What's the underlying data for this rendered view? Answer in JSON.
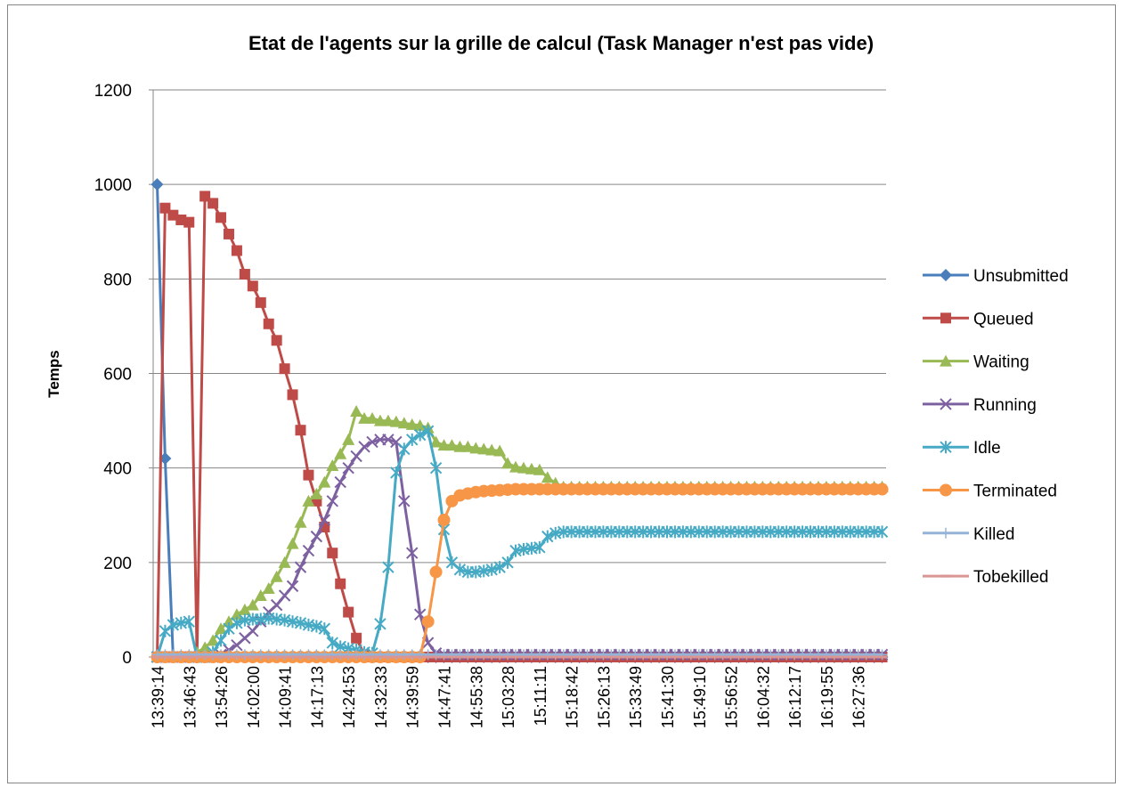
{
  "chart_data": {
    "type": "line",
    "title": "Etat de l'agents sur la grille de calcul (Task Manager n'est pas vide)",
    "y_label": "Temps",
    "categories": [
      "13:39:14",
      null,
      null,
      null,
      "13:46:43",
      null,
      null,
      null,
      "13:54:26",
      null,
      null,
      null,
      "14:02:00",
      null,
      null,
      null,
      "14:09:41",
      null,
      null,
      null,
      "14:17:13",
      null,
      null,
      null,
      "14:24:53",
      null,
      null,
      null,
      "14:32:33",
      null,
      null,
      null,
      "14:39:59",
      null,
      null,
      null,
      "14:47:41",
      null,
      null,
      null,
      "14:55:38",
      null,
      null,
      null,
      "15:03:28",
      null,
      null,
      null,
      "15:11:11",
      null,
      null,
      null,
      "15:18:42",
      null,
      null,
      null,
      "15:26:13",
      null,
      null,
      null,
      "15:33:49",
      null,
      null,
      null,
      "15:41:30",
      null,
      null,
      null,
      "15:49:10",
      null,
      null,
      null,
      "15:56:52",
      null,
      null,
      null,
      "16:04:32",
      null,
      null,
      null,
      "16:12:17",
      null,
      null,
      null,
      "16:19:55",
      null,
      null,
      null,
      "16:27:36",
      null,
      null,
      null
    ],
    "ylim": [
      0,
      1200
    ],
    "yticks": [
      0,
      200,
      400,
      600,
      800,
      1000,
      1200
    ],
    "grid": true,
    "legend": "right",
    "series": [
      {
        "name": "Unsubmitted",
        "color": "#4a7ebb",
        "marker": "diamond",
        "values": [
          1000,
          420,
          0,
          0,
          0,
          0,
          0,
          0,
          0,
          0,
          0,
          0,
          0,
          0,
          0,
          0,
          0,
          0,
          0,
          0,
          0,
          0,
          0,
          0,
          0,
          0,
          0,
          0,
          0,
          0,
          0,
          0,
          0,
          0,
          0,
          0,
          0,
          0,
          0,
          0,
          0,
          0,
          0,
          0,
          0,
          0,
          0,
          0,
          0,
          0,
          0,
          0,
          0,
          0,
          0,
          0,
          0,
          0,
          0,
          0,
          0,
          0,
          0,
          0,
          0,
          0,
          0,
          0,
          0,
          0,
          0,
          0,
          0,
          0,
          0,
          0,
          0,
          0,
          0,
          0,
          0,
          0,
          0,
          0,
          0,
          0,
          0,
          0,
          0,
          0,
          0,
          0
        ]
      },
      {
        "name": "Queued",
        "color": "#be4b48",
        "marker": "square",
        "values": [
          0,
          950,
          935,
          925,
          920,
          0,
          975,
          960,
          930,
          895,
          860,
          810,
          785,
          750,
          705,
          670,
          610,
          555,
          480,
          385,
          330,
          275,
          220,
          155,
          95,
          40,
          5,
          0,
          0,
          0,
          0,
          0,
          0,
          0,
          0,
          0,
          0,
          0,
          0,
          0,
          0,
          0,
          0,
          0,
          0,
          0,
          0,
          0,
          0,
          0,
          0,
          0,
          0,
          0,
          0,
          0,
          0,
          0,
          0,
          0,
          0,
          0,
          0,
          0,
          0,
          0,
          0,
          0,
          0,
          0,
          0,
          0,
          0,
          0,
          0,
          0,
          0,
          0,
          0,
          0,
          0,
          0,
          0,
          0,
          0,
          0,
          0,
          0,
          0,
          0,
          0,
          0
        ]
      },
      {
        "name": "Waiting",
        "color": "#98b954",
        "marker": "triangle",
        "values": [
          0,
          0,
          0,
          0,
          0,
          10,
          20,
          35,
          60,
          75,
          90,
          100,
          110,
          130,
          145,
          170,
          200,
          240,
          285,
          330,
          345,
          370,
          405,
          430,
          460,
          520,
          505,
          505,
          500,
          500,
          498,
          495,
          492,
          490,
          485,
          455,
          448,
          448,
          445,
          445,
          442,
          440,
          438,
          436,
          410,
          402,
          400,
          398,
          396,
          380,
          368,
          360,
          360,
          360,
          360,
          360,
          360,
          360,
          360,
          360,
          360,
          360,
          360,
          360,
          360,
          360,
          360,
          360,
          360,
          360,
          360,
          360,
          360,
          360,
          360,
          360,
          360,
          360,
          360,
          360,
          360,
          360,
          360,
          360,
          360,
          360,
          360,
          360,
          360,
          360,
          360,
          360
        ]
      },
      {
        "name": "Running",
        "color": "#7d60a0",
        "marker": "x",
        "values": [
          0,
          0,
          0,
          0,
          0,
          0,
          0,
          0,
          5,
          15,
          25,
          40,
          55,
          75,
          95,
          110,
          130,
          150,
          190,
          225,
          255,
          290,
          330,
          370,
          400,
          425,
          445,
          455,
          460,
          460,
          455,
          330,
          220,
          90,
          30,
          8,
          5,
          5,
          5,
          5,
          5,
          5,
          5,
          5,
          5,
          5,
          5,
          5,
          5,
          5,
          5,
          5,
          5,
          5,
          5,
          5,
          5,
          5,
          5,
          5,
          5,
          5,
          5,
          5,
          5,
          5,
          5,
          5,
          5,
          5,
          5,
          5,
          5,
          5,
          5,
          5,
          5,
          5,
          5,
          5,
          5,
          5,
          5,
          5,
          5,
          5,
          5,
          5,
          5,
          5,
          5,
          5
        ]
      },
      {
        "name": "Idle",
        "color": "#46aac5",
        "marker": "star",
        "values": [
          0,
          55,
          68,
          72,
          75,
          0,
          0,
          10,
          35,
          60,
          72,
          78,
          80,
          80,
          82,
          80,
          78,
          75,
          72,
          68,
          65,
          60,
          30,
          22,
          18,
          15,
          10,
          8,
          70,
          190,
          390,
          440,
          460,
          470,
          478,
          400,
          270,
          200,
          185,
          180,
          180,
          182,
          185,
          190,
          200,
          225,
          228,
          230,
          232,
          255,
          262,
          265,
          265,
          265,
          265,
          265,
          265,
          265,
          265,
          265,
          265,
          265,
          265,
          265,
          265,
          265,
          265,
          265,
          265,
          265,
          265,
          265,
          265,
          265,
          265,
          265,
          265,
          265,
          265,
          265,
          265,
          265,
          265,
          265,
          265,
          265,
          265,
          265,
          265,
          265,
          265,
          265
        ]
      },
      {
        "name": "Terminated",
        "color": "#f79646",
        "marker": "circle",
        "values": [
          0,
          0,
          0,
          0,
          0,
          0,
          0,
          0,
          0,
          0,
          0,
          0,
          0,
          0,
          0,
          0,
          0,
          0,
          0,
          0,
          0,
          0,
          0,
          0,
          0,
          0,
          0,
          0,
          0,
          0,
          0,
          0,
          0,
          0,
          75,
          180,
          290,
          330,
          342,
          346,
          349,
          351,
          352,
          353,
          354,
          355,
          355,
          355,
          355,
          355,
          355,
          355,
          355,
          355,
          355,
          355,
          355,
          355,
          355,
          355,
          355,
          355,
          355,
          355,
          355,
          355,
          355,
          355,
          355,
          355,
          355,
          355,
          355,
          355,
          355,
          355,
          355,
          355,
          355,
          355,
          355,
          355,
          355,
          355,
          355,
          355,
          355,
          355,
          355,
          355,
          355,
          355
        ]
      },
      {
        "name": "Killed",
        "color": "#95b3d7",
        "marker": "plus",
        "values": [
          5,
          5,
          5,
          5,
          5,
          5,
          5,
          5,
          5,
          5,
          5,
          5,
          5,
          5,
          5,
          5,
          5,
          5,
          5,
          5,
          5,
          5,
          5,
          5,
          5,
          5,
          5,
          5,
          5,
          5,
          5,
          5,
          5,
          5,
          5,
          5,
          5,
          5,
          5,
          5,
          5,
          5,
          5,
          5,
          5,
          5,
          5,
          5,
          5,
          5,
          5,
          5,
          5,
          5,
          5,
          5,
          5,
          5,
          5,
          5,
          5,
          5,
          5,
          5,
          5,
          5,
          5,
          5,
          5,
          5,
          5,
          5,
          5,
          5,
          5,
          5,
          5,
          5,
          5,
          5,
          5,
          5,
          5,
          5,
          5,
          5,
          5,
          5,
          5,
          5,
          5,
          5
        ]
      },
      {
        "name": "Tobekilled",
        "color": "#d99694",
        "marker": "dash",
        "values": [
          0,
          0,
          0,
          0,
          0,
          0,
          0,
          0,
          0,
          0,
          0,
          0,
          0,
          0,
          0,
          0,
          0,
          0,
          0,
          0,
          0,
          0,
          0,
          0,
          0,
          0,
          0,
          0,
          0,
          0,
          0,
          0,
          0,
          0,
          0,
          0,
          0,
          0,
          0,
          0,
          0,
          0,
          0,
          0,
          0,
          0,
          0,
          0,
          0,
          0,
          0,
          0,
          0,
          0,
          0,
          0,
          0,
          0,
          0,
          0,
          0,
          0,
          0,
          0,
          0,
          0,
          0,
          0,
          0,
          0,
          0,
          0,
          0,
          0,
          0,
          0,
          0,
          0,
          0,
          0,
          0,
          0,
          0,
          0,
          0,
          0,
          0,
          0,
          0,
          0,
          0,
          0
        ]
      }
    ]
  }
}
